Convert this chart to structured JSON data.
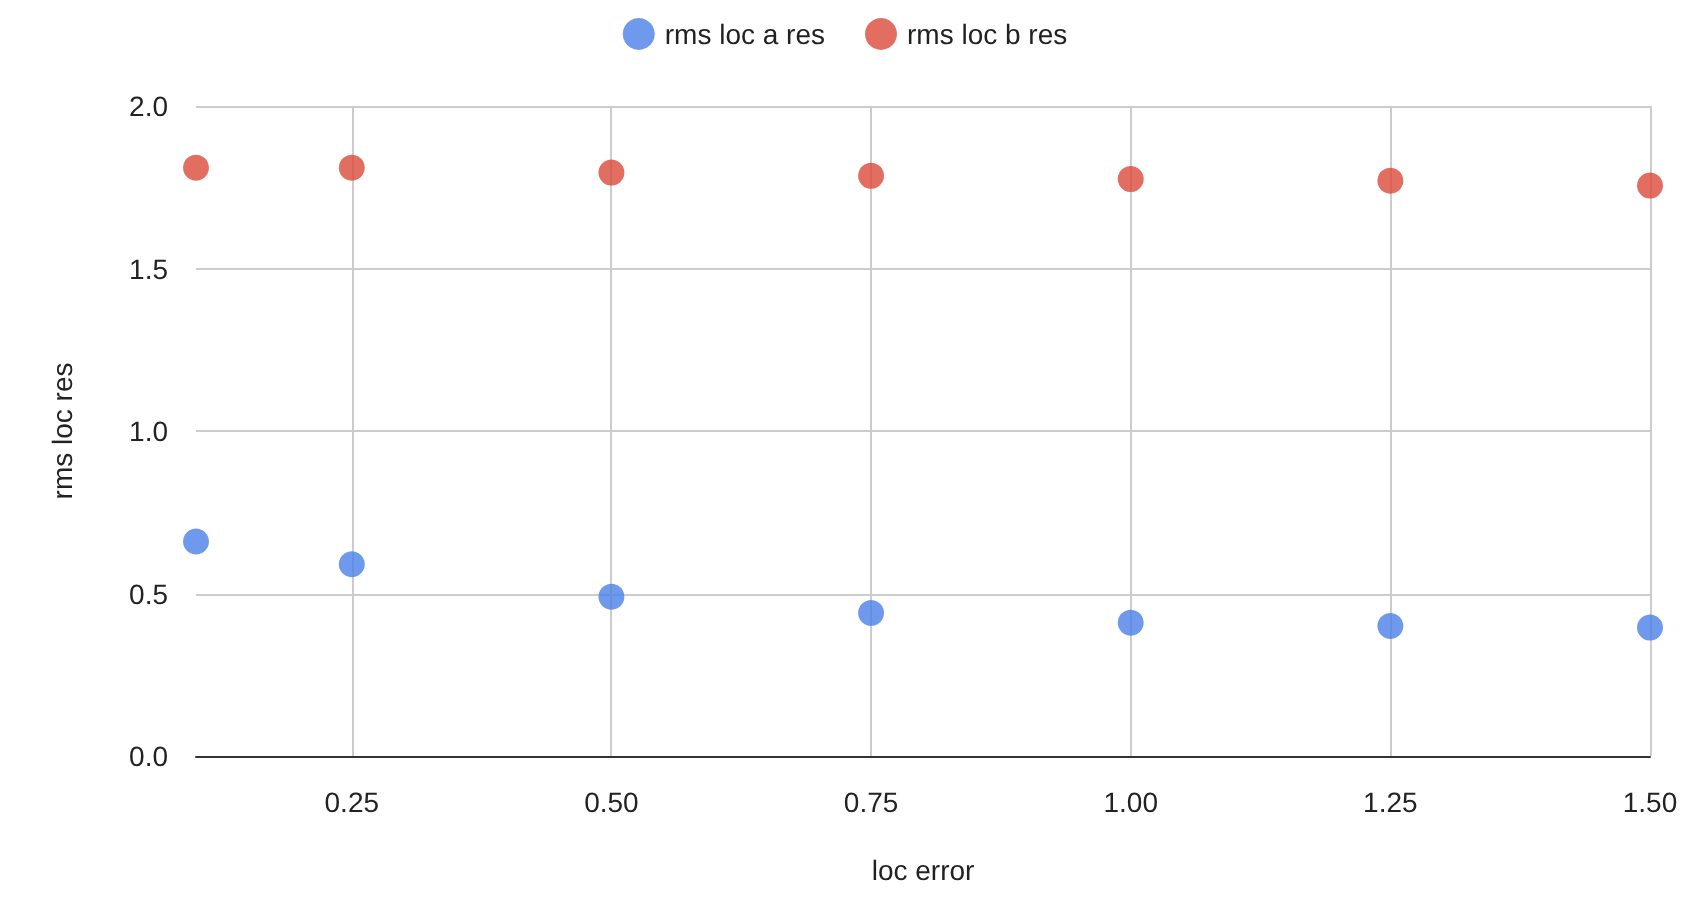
{
  "chart_data": {
    "type": "scatter",
    "xlabel": "loc error",
    "ylabel": "rms loc res",
    "x": [
      0.1,
      0.25,
      0.5,
      0.75,
      1.0,
      1.25,
      1.5
    ],
    "series": [
      {
        "name": "rms loc a res",
        "color": "#4a7fe8",
        "values": [
          0.66,
          0.59,
          0.49,
          0.44,
          0.41,
          0.4,
          0.395
        ]
      },
      {
        "name": "rms loc b res",
        "color": "#d94a38",
        "values": [
          1.81,
          1.81,
          1.795,
          1.785,
          1.775,
          1.77,
          1.755
        ]
      }
    ],
    "xlim": [
      0.1,
      1.5
    ],
    "xticks": [
      {
        "value": 0.25,
        "label": "0.25"
      },
      {
        "value": 0.5,
        "label": "0.50"
      },
      {
        "value": 0.75,
        "label": "0.75"
      },
      {
        "value": 1.0,
        "label": "1.00"
      },
      {
        "value": 1.25,
        "label": "1.25"
      },
      {
        "value": 1.5,
        "label": "1.50"
      }
    ],
    "ylim": [
      0,
      2
    ],
    "yticks": [
      {
        "value": 0,
        "label": "0.0"
      },
      {
        "value": 0.5,
        "label": "0.5"
      },
      {
        "value": 1,
        "label": "1.0"
      },
      {
        "value": 1.5,
        "label": "1.5"
      },
      {
        "value": 2,
        "label": "2.0"
      }
    ],
    "grid": true,
    "legend": "top",
    "marker": "circle"
  }
}
